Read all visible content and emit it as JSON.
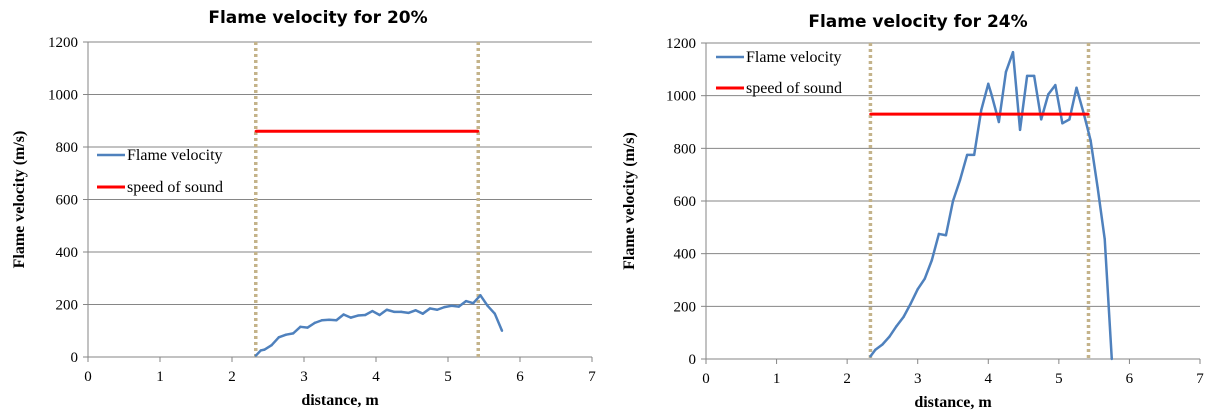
{
  "chart_data": [
    {
      "type": "line",
      "title": "Flame velocity for 20%",
      "xlabel": "distance, m",
      "ylabel": "Flame velocity (m/s)",
      "xlim": [
        0,
        7
      ],
      "ylim": [
        0,
        1200
      ],
      "xticks": [
        0,
        1,
        2,
        3,
        4,
        5,
        6,
        7
      ],
      "yticks": [
        0,
        200,
        400,
        600,
        800,
        1000,
        1200
      ],
      "grid": "horizontal",
      "legend_position": "left-middle",
      "series": [
        {
          "name": "Flame velocity",
          "color": "#4f81bd",
          "x": [
            2.33,
            2.4,
            2.45,
            2.55,
            2.65,
            2.75,
            2.85,
            2.95,
            3.05,
            3.15,
            3.25,
            3.35,
            3.45,
            3.55,
            3.65,
            3.75,
            3.85,
            3.95,
            4.05,
            4.15,
            4.25,
            4.35,
            4.45,
            4.55,
            4.65,
            4.75,
            4.85,
            4.95,
            5.05,
            5.15,
            5.25,
            5.35,
            5.45,
            5.55,
            5.65,
            5.75
          ],
          "y": [
            5,
            25,
            28,
            45,
            75,
            85,
            90,
            115,
            112,
            130,
            140,
            142,
            140,
            162,
            150,
            158,
            160,
            175,
            160,
            180,
            172,
            172,
            168,
            178,
            165,
            185,
            180,
            190,
            195,
            192,
            213,
            205,
            235,
            195,
            165,
            100
          ]
        },
        {
          "name": "speed of sound",
          "color": "#ff0000",
          "x": [
            2.33,
            5.42
          ],
          "y": [
            860,
            860
          ]
        }
      ],
      "reference_lines": [
        {
          "x": 2.33,
          "color": "#c4b38a",
          "style": "dotted"
        },
        {
          "x": 5.42,
          "color": "#c4b38a",
          "style": "dotted"
        }
      ]
    },
    {
      "type": "line",
      "title": "Flame velocity for 24%",
      "xlabel": "distance, m",
      "ylabel": "Flame velocity (m/s)",
      "xlim": [
        0,
        7
      ],
      "ylim": [
        0,
        1200
      ],
      "xticks": [
        0,
        1,
        2,
        3,
        4,
        5,
        6,
        7
      ],
      "yticks": [
        0,
        200,
        400,
        600,
        800,
        1000,
        1200
      ],
      "grid": "horizontal",
      "legend_position": "top-left",
      "series": [
        {
          "name": "Flame velocity",
          "color": "#4f81bd",
          "x": [
            2.33,
            2.4,
            2.5,
            2.6,
            2.7,
            2.8,
            2.9,
            3.0,
            3.1,
            3.2,
            3.3,
            3.4,
            3.5,
            3.6,
            3.7,
            3.8,
            3.9,
            4.0,
            4.05,
            4.15,
            4.25,
            4.35,
            4.45,
            4.55,
            4.65,
            4.75,
            4.85,
            4.95,
            5.05,
            5.15,
            5.25,
            5.35,
            5.45,
            5.55,
            5.65,
            5.75
          ],
          "y": [
            10,
            35,
            55,
            85,
            125,
            160,
            210,
            265,
            305,
            375,
            475,
            470,
            600,
            680,
            775,
            775,
            945,
            1045,
            1000,
            900,
            1090,
            1165,
            870,
            1075,
            1075,
            910,
            1005,
            1040,
            895,
            910,
            1030,
            935,
            830,
            650,
            455,
            0
          ]
        },
        {
          "name": "speed of sound",
          "color": "#ff0000",
          "x": [
            2.33,
            5.42
          ],
          "y": [
            930,
            930
          ]
        }
      ],
      "reference_lines": [
        {
          "x": 2.33,
          "color": "#c4b38a",
          "style": "dotted"
        },
        {
          "x": 5.42,
          "color": "#c4b38a",
          "style": "dotted"
        }
      ]
    }
  ]
}
